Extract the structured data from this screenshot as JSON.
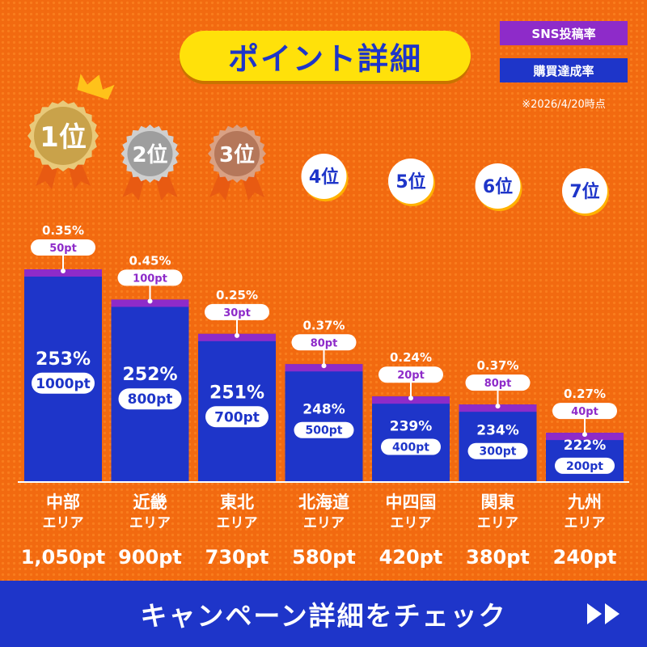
{
  "header": {
    "title": "ポイント詳細",
    "legend": [
      {
        "label": "SNS投稿率",
        "color": "#8e2bc9"
      },
      {
        "label": "購買達成率",
        "color": "#1e35c9"
      }
    ],
    "note": "※2026/4/20時点"
  },
  "chart_data": {
    "type": "bar",
    "categories": [
      {
        "name": "中部",
        "sub": "エリア"
      },
      {
        "name": "近畿",
        "sub": "エリア"
      },
      {
        "name": "東北",
        "sub": "エリア"
      },
      {
        "name": "北海道",
        "sub": "エリア"
      },
      {
        "name": "中四国",
        "sub": "エリア"
      },
      {
        "name": "関東",
        "sub": "エリア"
      },
      {
        "name": "九州",
        "sub": "エリア"
      }
    ],
    "ranks": [
      "1位",
      "2位",
      "3位",
      "4位",
      "5位",
      "6位",
      "7位"
    ],
    "series": [
      {
        "name": "SNS投稿率",
        "color": "#8e2bc9",
        "rate": [
          "0.35%",
          "0.45%",
          "0.25%",
          "0.37%",
          "0.24%",
          "0.37%",
          "0.27%"
        ],
        "points": [
          "50pt",
          "100pt",
          "30pt",
          "80pt",
          "20pt",
          "80pt",
          "40pt"
        ],
        "values": [
          0.35,
          0.45,
          0.25,
          0.37,
          0.24,
          0.37,
          0.27
        ]
      },
      {
        "name": "購買達成率",
        "color": "#1e35c9",
        "rate": [
          "253%",
          "252%",
          "251%",
          "248%",
          "239%",
          "234%",
          "222%"
        ],
        "points": [
          "1000pt",
          "800pt",
          "700pt",
          "500pt",
          "400pt",
          "300pt",
          "200pt"
        ],
        "values": [
          253,
          252,
          251,
          248,
          239,
          234,
          222
        ]
      }
    ],
    "totals": [
      "1,050pt",
      "900pt",
      "730pt",
      "580pt",
      "420pt",
      "380pt",
      "240pt"
    ],
    "total_values": [
      1050,
      900,
      730,
      580,
      420,
      380,
      240
    ]
  },
  "footer": {
    "cta_label": "キャンペーン詳細をチェック"
  }
}
